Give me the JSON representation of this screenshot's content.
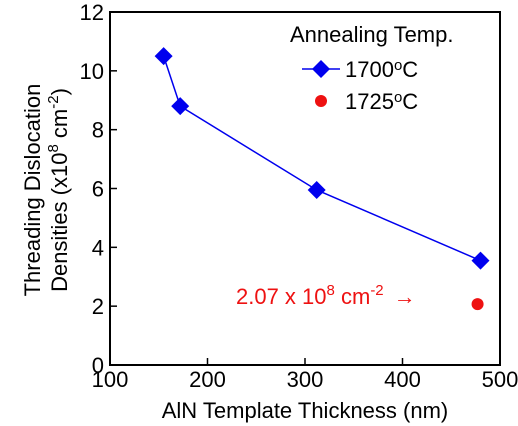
{
  "chart_data": {
    "type": "scatter",
    "xlabel": "AlN Template Thickness (nm)",
    "ylabel_line1": "Threading Dislocation",
    "ylabel_line2_prefix": "Densities (x10",
    "ylabel_line2_exp": "8",
    "ylabel_line2_mid": " cm",
    "ylabel_line2_exp2": "-2",
    "ylabel_line2_suffix": ")",
    "xlim": [
      100,
      500
    ],
    "ylim": [
      0,
      12
    ],
    "xticks": [
      "100",
      "200",
      "300",
      "400",
      "500"
    ],
    "yticks": [
      "0",
      "2",
      "4",
      "6",
      "8",
      "10",
      "12"
    ],
    "legend": {
      "title": "Annealing Temp.",
      "placement": "top-right"
    },
    "series": [
      {
        "name_base": "1700",
        "name_sup": "o",
        "name_unit": "C",
        "marker": "diamond",
        "line": true,
        "color": "#0000ee",
        "points": [
          {
            "x": 155,
            "y": 10.5
          },
          {
            "x": 172,
            "y": 8.8
          },
          {
            "x": 312,
            "y": 5.95
          },
          {
            "x": 480,
            "y": 3.55
          }
        ]
      },
      {
        "name_base": "1725",
        "name_sup": "o",
        "name_unit": "C",
        "marker": "circle",
        "line": false,
        "color": "#ee1111",
        "points": [
          {
            "x": 477,
            "y": 2.07
          }
        ]
      }
    ],
    "annotation": {
      "prefix": "2.07 x 10",
      "exp": "8",
      "mid": " cm",
      "exp2": "-2",
      "arrow": "→",
      "color": "#ee1111"
    }
  }
}
